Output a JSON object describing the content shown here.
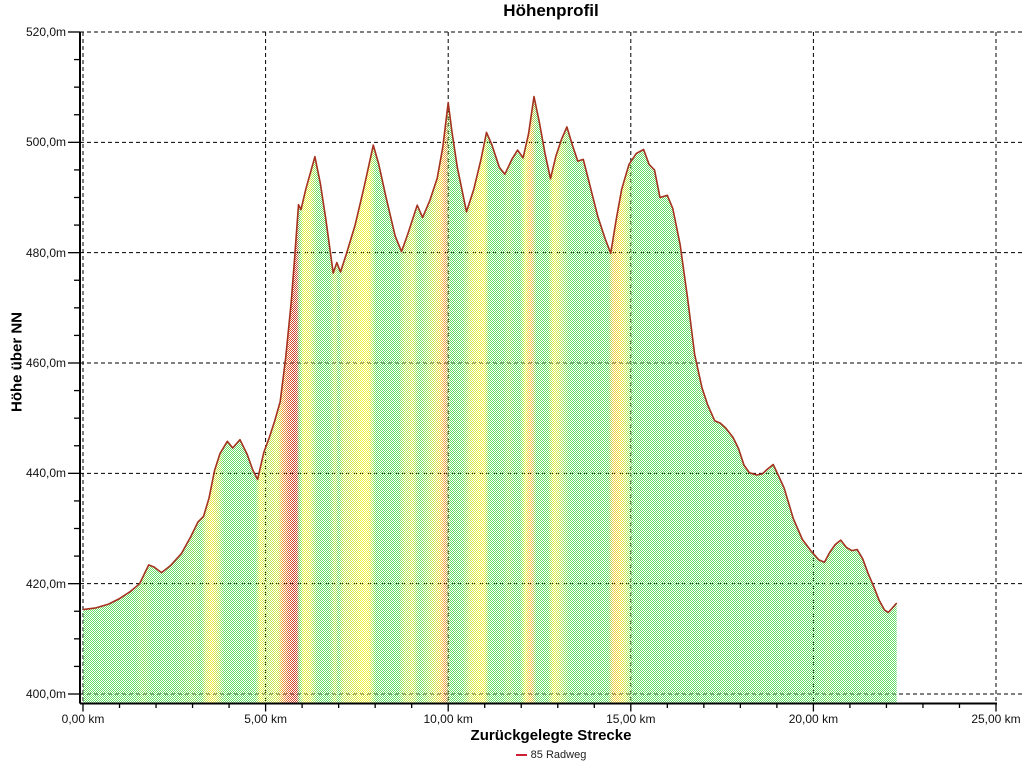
{
  "chart_data": {
    "type": "area",
    "title": "Höhenprofil",
    "xlabel": "Zurückgelegte Strecke",
    "ylabel": "Höhe über NN",
    "legend": [
      {
        "label": "85 Radweg",
        "color": "#cc2133"
      }
    ],
    "x_unit": "km",
    "y_unit": "m",
    "xlim": [
      0,
      25.7
    ],
    "ylim": [
      400,
      520
    ],
    "grid": "dashed",
    "legend_position": "bottom-center",
    "line_color": "#a5321f",
    "slope_fill_legend": {
      "flat_or_descent": "#66dd66",
      "moderate_climb": "#f2f23c",
      "steep_climb": "#d04028"
    },
    "x_ticks": [
      {
        "v": 0,
        "label": "0,00 km"
      },
      {
        "v": 5,
        "label": "5,00 km"
      },
      {
        "v": 10,
        "label": "10,00 km"
      },
      {
        "v": 15,
        "label": "15,00 km"
      },
      {
        "v": 20,
        "label": "20,00 km"
      },
      {
        "v": 25,
        "label": "25,00 km"
      }
    ],
    "x_minor_step": 1,
    "y_ticks": [
      {
        "v": 400,
        "label": "400,0m"
      },
      {
        "v": 420,
        "label": "420,0m"
      },
      {
        "v": 440,
        "label": "440,0m"
      },
      {
        "v": 460,
        "label": "460,0m"
      },
      {
        "v": 480,
        "label": "480,0m"
      },
      {
        "v": 500,
        "label": "500,0m"
      },
      {
        "v": 520,
        "label": "520,0m"
      }
    ],
    "y_minor_step": 5,
    "series": [
      {
        "name": "85 Radweg",
        "points": [
          [
            0.0,
            415.3
          ],
          [
            0.35,
            415.6
          ],
          [
            0.7,
            416.3
          ],
          [
            1.0,
            417.3
          ],
          [
            1.3,
            418.6
          ],
          [
            1.55,
            420.0
          ],
          [
            1.8,
            423.4
          ],
          [
            1.95,
            423.0
          ],
          [
            2.15,
            422.0
          ],
          [
            2.4,
            423.3
          ],
          [
            2.7,
            425.5
          ],
          [
            2.95,
            428.5
          ],
          [
            3.15,
            431.2
          ],
          [
            3.3,
            432.2
          ],
          [
            3.45,
            435.5
          ],
          [
            3.6,
            440.5
          ],
          [
            3.75,
            443.6
          ],
          [
            3.95,
            445.8
          ],
          [
            4.1,
            444.6
          ],
          [
            4.3,
            446.1
          ],
          [
            4.5,
            443.4
          ],
          [
            4.65,
            440.6
          ],
          [
            4.78,
            438.9
          ],
          [
            4.95,
            443.8
          ],
          [
            5.1,
            446.5
          ],
          [
            5.25,
            449.5
          ],
          [
            5.4,
            453.0
          ],
          [
            5.55,
            461.0
          ],
          [
            5.7,
            471.0
          ],
          [
            5.8,
            479.5
          ],
          [
            5.9,
            488.7
          ],
          [
            5.97,
            487.8
          ],
          [
            6.1,
            491.5
          ],
          [
            6.35,
            497.4
          ],
          [
            6.5,
            492.5
          ],
          [
            6.65,
            486.0
          ],
          [
            6.85,
            476.3
          ],
          [
            6.95,
            478.2
          ],
          [
            7.05,
            476.5
          ],
          [
            7.2,
            479.5
          ],
          [
            7.45,
            485.0
          ],
          [
            7.7,
            492.0
          ],
          [
            7.95,
            499.5
          ],
          [
            8.1,
            496.0
          ],
          [
            8.3,
            490.0
          ],
          [
            8.55,
            483.0
          ],
          [
            8.72,
            480.2
          ],
          [
            8.9,
            483.5
          ],
          [
            9.15,
            488.6
          ],
          [
            9.3,
            486.4
          ],
          [
            9.5,
            489.5
          ],
          [
            9.7,
            493.5
          ],
          [
            9.85,
            499.0
          ],
          [
            10.0,
            507.2
          ],
          [
            10.1,
            502.0
          ],
          [
            10.25,
            495.5
          ],
          [
            10.5,
            487.4
          ],
          [
            10.7,
            491.5
          ],
          [
            10.9,
            497.0
          ],
          [
            11.05,
            501.8
          ],
          [
            11.2,
            499.5
          ],
          [
            11.4,
            495.5
          ],
          [
            11.55,
            494.2
          ],
          [
            11.75,
            497.0
          ],
          [
            11.9,
            498.6
          ],
          [
            12.05,
            497.2
          ],
          [
            12.2,
            501.5
          ],
          [
            12.35,
            508.3
          ],
          [
            12.5,
            503.5
          ],
          [
            12.65,
            498.0
          ],
          [
            12.8,
            493.4
          ],
          [
            12.95,
            497.5
          ],
          [
            13.1,
            500.5
          ],
          [
            13.25,
            502.8
          ],
          [
            13.4,
            499.5
          ],
          [
            13.55,
            496.6
          ],
          [
            13.7,
            496.9
          ],
          [
            13.85,
            493.0
          ],
          [
            14.1,
            486.5
          ],
          [
            14.3,
            482.5
          ],
          [
            14.45,
            479.9
          ],
          [
            14.6,
            486.0
          ],
          [
            14.75,
            491.5
          ],
          [
            14.95,
            496.0
          ],
          [
            15.15,
            498.0
          ],
          [
            15.35,
            498.7
          ],
          [
            15.5,
            496.0
          ],
          [
            15.65,
            495.0
          ],
          [
            15.8,
            490.0
          ],
          [
            16.0,
            490.4
          ],
          [
            16.15,
            488.0
          ],
          [
            16.35,
            481.5
          ],
          [
            16.55,
            472.0
          ],
          [
            16.75,
            461.5
          ],
          [
            16.95,
            455.5
          ],
          [
            17.1,
            452.5
          ],
          [
            17.3,
            449.5
          ],
          [
            17.45,
            449.1
          ],
          [
            17.6,
            448.2
          ],
          [
            17.8,
            446.5
          ],
          [
            17.95,
            444.5
          ],
          [
            18.1,
            441.5
          ],
          [
            18.25,
            440.1
          ],
          [
            18.45,
            439.7
          ],
          [
            18.6,
            439.9
          ],
          [
            18.75,
            440.8
          ],
          [
            18.9,
            441.6
          ],
          [
            19.05,
            439.5
          ],
          [
            19.2,
            437.3
          ],
          [
            19.45,
            431.8
          ],
          [
            19.7,
            428.0
          ],
          [
            19.95,
            425.8
          ],
          [
            20.15,
            424.3
          ],
          [
            20.3,
            423.9
          ],
          [
            20.45,
            425.7
          ],
          [
            20.6,
            427.1
          ],
          [
            20.75,
            427.9
          ],
          [
            20.9,
            426.6
          ],
          [
            21.05,
            426.0
          ],
          [
            21.2,
            426.2
          ],
          [
            21.35,
            424.5
          ],
          [
            21.5,
            421.8
          ],
          [
            21.65,
            419.5
          ],
          [
            21.8,
            417.0
          ],
          [
            21.95,
            415.2
          ],
          [
            22.05,
            414.8
          ],
          [
            22.15,
            415.5
          ],
          [
            22.28,
            416.5
          ]
        ]
      }
    ]
  }
}
